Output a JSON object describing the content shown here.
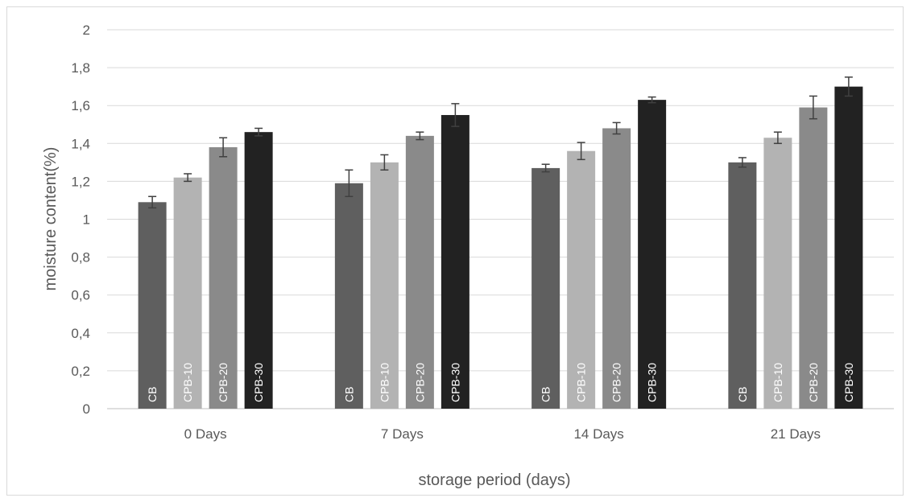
{
  "chart_data": {
    "type": "bar",
    "title": "",
    "xlabel": "storage period (days)",
    "ylabel": "moisture content(%)",
    "categories": [
      "0 Days",
      "7 Days",
      "14 Days",
      "21 Days"
    ],
    "ylim": [
      0,
      2
    ],
    "yticks": [
      "0",
      "0,2",
      "0,4",
      "0,6",
      "0,8",
      "1",
      "1,2",
      "1,4",
      "1,6",
      "1,8",
      "2"
    ],
    "grid": true,
    "legend": "none",
    "series": [
      {
        "name": "CB",
        "color": "#5f5f5f",
        "values": [
          1.09,
          1.19,
          1.27,
          1.3
        ],
        "errors": [
          0.03,
          0.07,
          0.02,
          0.025
        ]
      },
      {
        "name": "CPB-10",
        "color": "#b3b3b3",
        "values": [
          1.22,
          1.3,
          1.36,
          1.43
        ],
        "errors": [
          0.02,
          0.04,
          0.045,
          0.03
        ]
      },
      {
        "name": "CPB-20",
        "color": "#8a8a8a",
        "values": [
          1.38,
          1.44,
          1.48,
          1.59
        ],
        "errors": [
          0.05,
          0.02,
          0.03,
          0.06
        ]
      },
      {
        "name": "CPB-30",
        "color": "#222222",
        "values": [
          1.46,
          1.55,
          1.63,
          1.7
        ],
        "errors": [
          0.02,
          0.06,
          0.015,
          0.05
        ]
      }
    ]
  }
}
